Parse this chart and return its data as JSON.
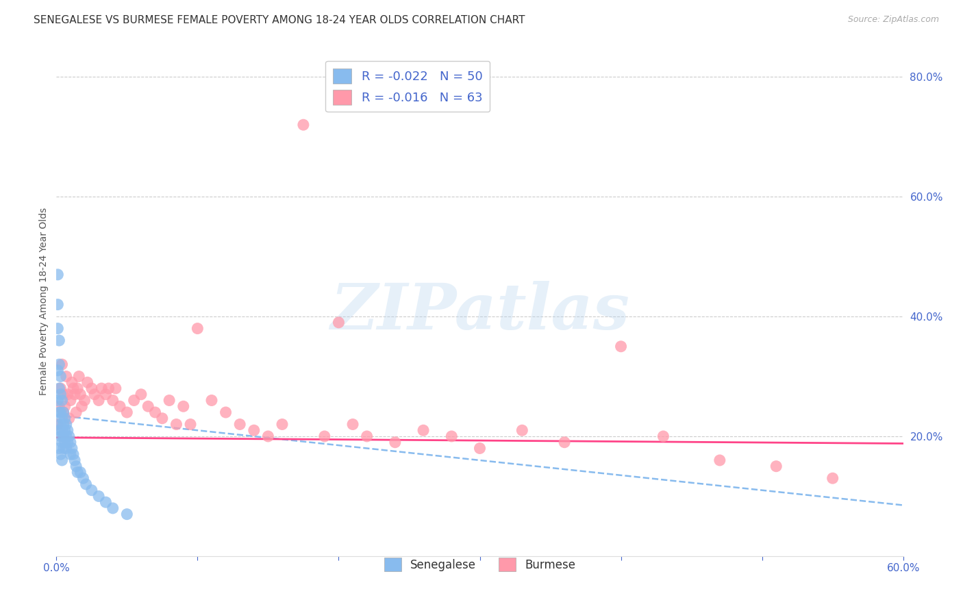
{
  "title": "SENEGALESE VS BURMESE FEMALE POVERTY AMONG 18-24 YEAR OLDS CORRELATION CHART",
  "source": "Source: ZipAtlas.com",
  "ylabel": "Female Poverty Among 18-24 Year Olds",
  "xlabel": "",
  "xlim": [
    0.0,
    0.6
  ],
  "ylim": [
    0.0,
    0.85
  ],
  "xtick_positions": [
    0.0,
    0.1,
    0.2,
    0.3,
    0.4,
    0.5,
    0.6
  ],
  "xtick_labels": [
    "0.0%",
    "",
    "",
    "",
    "",
    "",
    "60.0%"
  ],
  "yticks_right": [
    0.2,
    0.4,
    0.6,
    0.8
  ],
  "ytick_labels_right": [
    "20.0%",
    "40.0%",
    "60.0%",
    "80.0%"
  ],
  "grid_color": "#cccccc",
  "background_color": "#ffffff",
  "senegalese_color": "#88bbee",
  "burmese_color": "#ff99aa",
  "trend_senegalese_color": "#88bbee",
  "trend_burmese_color": "#ff4488",
  "senegalese_R": -0.022,
  "senegalese_N": 50,
  "burmese_R": -0.016,
  "burmese_N": 63,
  "watermark": "ZIPatlas",
  "title_color": "#333333",
  "axis_color": "#4466cc",
  "title_fontsize": 11,
  "senegalese_x": [
    0.001,
    0.001,
    0.001,
    0.001,
    0.001,
    0.002,
    0.002,
    0.002,
    0.002,
    0.002,
    0.002,
    0.003,
    0.003,
    0.003,
    0.003,
    0.003,
    0.003,
    0.004,
    0.004,
    0.004,
    0.004,
    0.004,
    0.005,
    0.005,
    0.005,
    0.005,
    0.006,
    0.006,
    0.006,
    0.007,
    0.007,
    0.007,
    0.008,
    0.008,
    0.009,
    0.01,
    0.01,
    0.011,
    0.012,
    0.013,
    0.014,
    0.015,
    0.017,
    0.019,
    0.021,
    0.025,
    0.03,
    0.035,
    0.04,
    0.05
  ],
  "senegalese_y": [
    0.47,
    0.42,
    0.38,
    0.31,
    0.26,
    0.36,
    0.32,
    0.28,
    0.24,
    0.21,
    0.18,
    0.3,
    0.27,
    0.24,
    0.22,
    0.2,
    0.17,
    0.26,
    0.23,
    0.21,
    0.19,
    0.16,
    0.24,
    0.22,
    0.2,
    0.18,
    0.23,
    0.21,
    0.19,
    0.22,
    0.2,
    0.18,
    0.21,
    0.19,
    0.2,
    0.19,
    0.17,
    0.18,
    0.17,
    0.16,
    0.15,
    0.14,
    0.14,
    0.13,
    0.12,
    0.11,
    0.1,
    0.09,
    0.08,
    0.07
  ],
  "burmese_x": [
    0.001,
    0.002,
    0.003,
    0.004,
    0.005,
    0.005,
    0.006,
    0.007,
    0.008,
    0.009,
    0.01,
    0.011,
    0.012,
    0.013,
    0.014,
    0.015,
    0.016,
    0.017,
    0.018,
    0.02,
    0.022,
    0.025,
    0.027,
    0.03,
    0.032,
    0.035,
    0.037,
    0.04,
    0.042,
    0.045,
    0.05,
    0.055,
    0.06,
    0.065,
    0.07,
    0.075,
    0.08,
    0.085,
    0.09,
    0.095,
    0.1,
    0.11,
    0.12,
    0.13,
    0.14,
    0.15,
    0.16,
    0.175,
    0.19,
    0.2,
    0.21,
    0.22,
    0.24,
    0.26,
    0.28,
    0.3,
    0.33,
    0.36,
    0.4,
    0.43,
    0.47,
    0.51,
    0.55
  ],
  "burmese_y": [
    0.22,
    0.25,
    0.28,
    0.32,
    0.27,
    0.24,
    0.25,
    0.3,
    0.27,
    0.23,
    0.26,
    0.29,
    0.28,
    0.27,
    0.24,
    0.28,
    0.3,
    0.27,
    0.25,
    0.26,
    0.29,
    0.28,
    0.27,
    0.26,
    0.28,
    0.27,
    0.28,
    0.26,
    0.28,
    0.25,
    0.24,
    0.26,
    0.27,
    0.25,
    0.24,
    0.23,
    0.26,
    0.22,
    0.25,
    0.22,
    0.38,
    0.26,
    0.24,
    0.22,
    0.21,
    0.2,
    0.22,
    0.72,
    0.2,
    0.39,
    0.22,
    0.2,
    0.19,
    0.21,
    0.2,
    0.18,
    0.21,
    0.19,
    0.35,
    0.2,
    0.16,
    0.15,
    0.13
  ],
  "trend_sen_x0": 0.0,
  "trend_sen_x1": 0.6,
  "trend_sen_y0": 0.235,
  "trend_sen_y1": 0.085,
  "trend_bur_x0": 0.0,
  "trend_bur_x1": 0.6,
  "trend_bur_y0": 0.198,
  "trend_bur_y1": 0.188
}
